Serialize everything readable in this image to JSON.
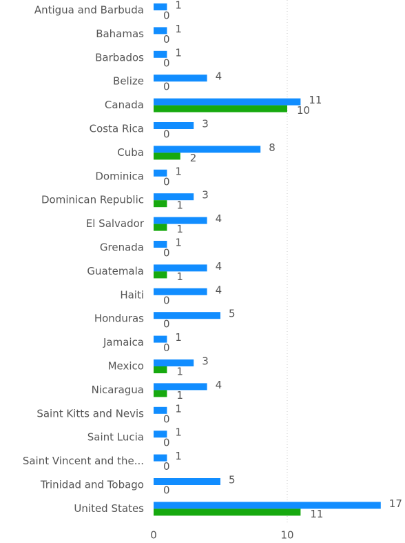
{
  "chart_data": {
    "type": "bar",
    "orientation": "horizontal",
    "categories": [
      "Antigua and Barbuda",
      "Bahamas",
      "Barbados",
      "Belize",
      "Canada",
      "Costa Rica",
      "Cuba",
      "Dominica",
      "Dominican Republic",
      "El Salvador",
      "Grenada",
      "Guatemala",
      "Haiti",
      "Honduras",
      "Jamaica",
      "Mexico",
      "Nicaragua",
      "Saint Kitts and Nevis",
      "Saint Lucia",
      "Saint Vincent and the...",
      "Trinidad and Tobago",
      "United States"
    ],
    "series": [
      {
        "color": "#118dff",
        "values": [
          1,
          1,
          1,
          4,
          11,
          3,
          8,
          1,
          3,
          4,
          1,
          4,
          4,
          5,
          1,
          3,
          4,
          1,
          1,
          1,
          5,
          17
        ]
      },
      {
        "color": "#17a90f",
        "values": [
          0,
          0,
          0,
          0,
          10,
          0,
          2,
          0,
          1,
          1,
          0,
          1,
          0,
          0,
          0,
          1,
          1,
          0,
          0,
          0,
          0,
          11
        ]
      }
    ],
    "xlim": [
      0,
      18
    ],
    "xticks": [
      0,
      10
    ],
    "grid": true
  }
}
